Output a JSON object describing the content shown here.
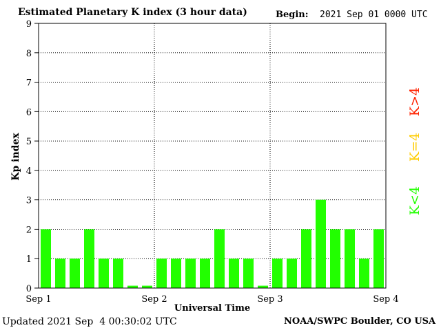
{
  "header": {
    "title": "Estimated Planetary K index (3 hour data)",
    "begin_label": "Begin:",
    "begin_value": "2021 Sep 01 0000 UTC"
  },
  "footer": {
    "updated": "Updated 2021 Sep  4 00:30:02 UTC",
    "credit": "NOAA/SWPC Boulder, CO USA"
  },
  "chart_data": {
    "type": "bar",
    "ylabel": "Kp index",
    "xlabel": "Universal Time",
    "ylim": [
      0,
      9
    ],
    "yticks": [
      "0",
      "1",
      "2",
      "3",
      "4",
      "5",
      "6",
      "7",
      "8",
      "9"
    ],
    "xticks": [
      "Sep 1",
      "Sep 2",
      "Sep 3",
      "Sep 4"
    ],
    "grid": true,
    "bar_color": "#22ff00",
    "values": [
      2,
      1,
      1,
      2,
      1,
      1,
      0,
      0,
      1,
      1,
      1,
      1,
      2,
      1,
      1,
      0,
      1,
      1,
      2,
      3,
      2,
      2,
      1,
      2
    ],
    "legend": [
      {
        "label": "K<4",
        "color": "#22ff00"
      },
      {
        "label": "K=4",
        "color": "#ffcc00"
      },
      {
        "label": "K>4",
        "color": "#ff2200"
      }
    ]
  }
}
